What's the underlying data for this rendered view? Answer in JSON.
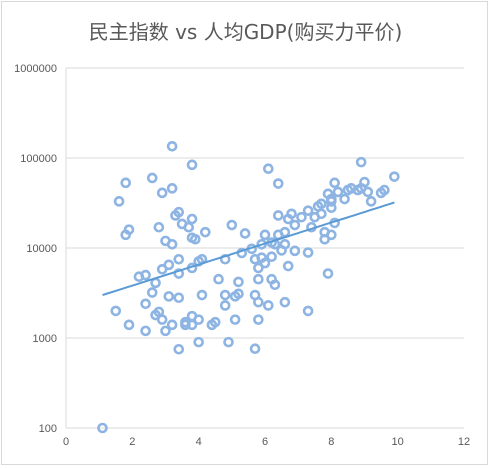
{
  "chart_data": {
    "type": "scatter",
    "title": "民主指数 vs 人均GDP(购买力平价)",
    "xlabel": "",
    "ylabel": "",
    "xlim": [
      0,
      12
    ],
    "ylim": [
      100,
      1000000
    ],
    "yscale": "log",
    "x_ticks": [
      "0",
      "2",
      "4",
      "6",
      "8",
      "10",
      "12"
    ],
    "y_ticks": [
      "100",
      "1000",
      "10000",
      "100000",
      "1000000"
    ],
    "grid": true,
    "legend": "none",
    "colors": {
      "marker": "#8db4e2",
      "trendline": "#5b9bd5",
      "grid": "#d9d9d9",
      "text": "#595959"
    },
    "series": [
      {
        "type": "scatter",
        "points": [
          [
            1.1,
            100
          ],
          [
            1.5,
            2000
          ],
          [
            1.6,
            33000
          ],
          [
            1.8,
            53000
          ],
          [
            1.8,
            14000
          ],
          [
            1.9,
            16000
          ],
          [
            1.9,
            1400
          ],
          [
            2.2,
            4800
          ],
          [
            2.4,
            2400
          ],
          [
            2.4,
            5000
          ],
          [
            2.4,
            1200
          ],
          [
            2.6,
            3200
          ],
          [
            2.6,
            60000
          ],
          [
            2.7,
            4100
          ],
          [
            2.7,
            1800
          ],
          [
            2.8,
            1950
          ],
          [
            2.8,
            17000
          ],
          [
            2.9,
            41000
          ],
          [
            2.9,
            5800
          ],
          [
            2.9,
            1600
          ],
          [
            3.0,
            1200
          ],
          [
            3.0,
            12000
          ],
          [
            3.1,
            6500
          ],
          [
            3.1,
            2900
          ],
          [
            3.2,
            11000
          ],
          [
            3.2,
            46000
          ],
          [
            3.2,
            1400
          ],
          [
            3.2,
            135000
          ],
          [
            3.3,
            23000
          ],
          [
            3.4,
            25000
          ],
          [
            3.4,
            5200
          ],
          [
            3.4,
            7500
          ],
          [
            3.4,
            2800
          ],
          [
            3.4,
            750
          ],
          [
            3.5,
            18500
          ],
          [
            3.6,
            1400
          ],
          [
            3.6,
            1500
          ],
          [
            3.7,
            17000
          ],
          [
            3.8,
            21000
          ],
          [
            3.8,
            13000
          ],
          [
            3.8,
            84000
          ],
          [
            3.8,
            6000
          ],
          [
            3.8,
            1400
          ],
          [
            3.8,
            1750
          ],
          [
            3.9,
            12500
          ],
          [
            4.0,
            7100
          ],
          [
            4.0,
            1600
          ],
          [
            4.0,
            900
          ],
          [
            4.1,
            7500
          ],
          [
            4.1,
            3000
          ],
          [
            4.2,
            15000
          ],
          [
            4.4,
            1400
          ],
          [
            4.5,
            1500
          ],
          [
            4.6,
            4500
          ],
          [
            4.8,
            7500
          ],
          [
            4.8,
            3000
          ],
          [
            4.8,
            2300
          ],
          [
            4.9,
            900
          ],
          [
            5.0,
            18000
          ],
          [
            5.1,
            2900
          ],
          [
            5.1,
            1600
          ],
          [
            5.2,
            3100
          ],
          [
            5.2,
            4200
          ],
          [
            5.3,
            8800
          ],
          [
            5.4,
            14500
          ],
          [
            5.6,
            9800
          ],
          [
            5.7,
            7500
          ],
          [
            5.7,
            3000
          ],
          [
            5.7,
            760
          ],
          [
            5.8,
            6000
          ],
          [
            5.8,
            4500
          ],
          [
            5.8,
            2500
          ],
          [
            5.8,
            1600
          ],
          [
            5.9,
            11000
          ],
          [
            5.9,
            7800
          ],
          [
            6.0,
            14000
          ],
          [
            6.0,
            6800
          ],
          [
            6.1,
            76000
          ],
          [
            6.1,
            2300
          ],
          [
            6.2,
            11500
          ],
          [
            6.2,
            8000
          ],
          [
            6.2,
            4500
          ],
          [
            6.3,
            11000
          ],
          [
            6.3,
            3900
          ],
          [
            6.4,
            52000
          ],
          [
            6.4,
            23000
          ],
          [
            6.4,
            14000
          ],
          [
            6.5,
            9400
          ],
          [
            6.6,
            15000
          ],
          [
            6.6,
            11000
          ],
          [
            6.6,
            2500
          ],
          [
            6.7,
            21000
          ],
          [
            6.7,
            6300
          ],
          [
            6.8,
            24000
          ],
          [
            6.9,
            18000
          ],
          [
            6.9,
            9300
          ],
          [
            7.1,
            22000
          ],
          [
            7.3,
            26000
          ],
          [
            7.3,
            2000
          ],
          [
            7.3,
            8900
          ],
          [
            7.4,
            17000
          ],
          [
            7.5,
            22000
          ],
          [
            7.6,
            29000
          ],
          [
            7.7,
            31000
          ],
          [
            7.7,
            24000
          ],
          [
            7.8,
            15000
          ],
          [
            7.8,
            12500
          ],
          [
            7.9,
            5200
          ],
          [
            7.9,
            40000
          ],
          [
            8.0,
            35000
          ],
          [
            8.0,
            33000
          ],
          [
            8.0,
            28000
          ],
          [
            8.0,
            14000
          ],
          [
            8.1,
            53000
          ],
          [
            8.1,
            19000
          ],
          [
            8.2,
            42000
          ],
          [
            8.4,
            35000
          ],
          [
            8.5,
            44000
          ],
          [
            8.6,
            46000
          ],
          [
            8.8,
            44000
          ],
          [
            8.9,
            90000
          ],
          [
            8.9,
            46000
          ],
          [
            9.0,
            54000
          ],
          [
            9.1,
            42000
          ],
          [
            9.2,
            33000
          ],
          [
            9.5,
            41000
          ],
          [
            9.6,
            44000
          ],
          [
            9.9,
            62000
          ]
        ]
      },
      {
        "type": "trendline",
        "name": "",
        "fit": "exponential",
        "x": [
          1.1,
          9.9
        ],
        "y_start": 3000,
        "y_end": 32000
      }
    ]
  }
}
